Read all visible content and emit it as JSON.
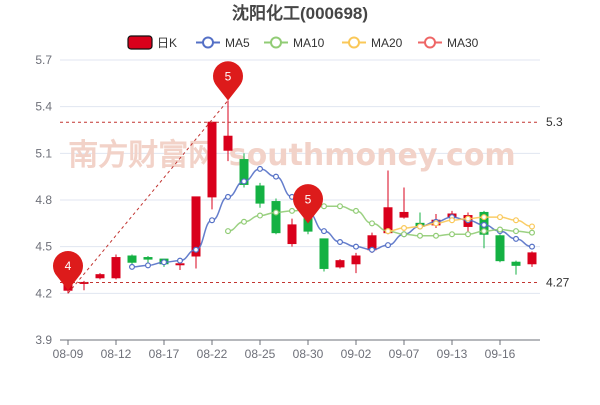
{
  "chart_data": {
    "type": "candlestick",
    "title": "沈阳化工(000698)",
    "legend": {
      "placement": "top-center",
      "items": [
        {
          "name": "日K",
          "color": "#d9001b",
          "kind": "box"
        },
        {
          "name": "MA5",
          "color": "#5470c6",
          "kind": "circle"
        },
        {
          "name": "MA10",
          "color": "#91cc75",
          "kind": "circle"
        },
        {
          "name": "MA20",
          "color": "#fac858",
          "kind": "circle"
        },
        {
          "name": "MA30",
          "color": "#ee6666",
          "kind": "circle"
        }
      ]
    },
    "xlabel": "",
    "ylabel": "",
    "ylim": [
      3.9,
      5.7
    ],
    "y_ticks": [
      3.9,
      4.2,
      4.5,
      4.8,
      5.1,
      5.4,
      5.7
    ],
    "grid": "horizontal",
    "x_tick_labels": [
      "08-09",
      "08-12",
      "08-17",
      "08-22",
      "08-25",
      "08-30",
      "09-02",
      "09-07",
      "09-13",
      "09-16"
    ],
    "x_tick_index": [
      0,
      3,
      6,
      9,
      12,
      15,
      18,
      21,
      24,
      27
    ],
    "candles": [
      {
        "o": 4.22,
        "c": 4.27,
        "h": 4.29,
        "l": 4.2
      },
      {
        "o": 4.27,
        "c": 4.27,
        "h": 4.28,
        "l": 4.22
      },
      {
        "o": 4.3,
        "c": 4.32,
        "h": 4.33,
        "l": 4.29
      },
      {
        "o": 4.3,
        "c": 4.43,
        "h": 4.45,
        "l": 4.29
      },
      {
        "o": 4.44,
        "c": 4.4,
        "h": 4.45,
        "l": 4.37
      },
      {
        "o": 4.43,
        "c": 4.42,
        "h": 4.44,
        "l": 4.38
      },
      {
        "o": 4.42,
        "c": 4.39,
        "h": 4.42,
        "l": 4.37
      },
      {
        "o": 4.39,
        "c": 4.39,
        "h": 4.4,
        "l": 4.35
      },
      {
        "o": 4.44,
        "c": 4.82,
        "h": 4.82,
        "l": 4.36
      },
      {
        "o": 4.82,
        "c": 5.3,
        "h": 5.3,
        "l": 4.74
      },
      {
        "o": 5.12,
        "c": 5.21,
        "h": 5.44,
        "l": 5.05
      },
      {
        "o": 5.06,
        "c": 4.9,
        "h": 5.1,
        "l": 4.88
      },
      {
        "o": 4.89,
        "c": 4.78,
        "h": 4.91,
        "l": 4.75
      },
      {
        "o": 4.79,
        "c": 4.59,
        "h": 4.81,
        "l": 4.58
      },
      {
        "o": 4.52,
        "c": 4.64,
        "h": 4.68,
        "l": 4.5
      },
      {
        "o": 4.68,
        "c": 4.6,
        "h": 4.77,
        "l": 4.58
      },
      {
        "o": 4.55,
        "c": 4.36,
        "h": 4.55,
        "l": 4.34
      },
      {
        "o": 4.37,
        "c": 4.41,
        "h": 4.42,
        "l": 4.36
      },
      {
        "o": 4.39,
        "c": 4.44,
        "h": 4.46,
        "l": 4.33
      },
      {
        "o": 4.48,
        "c": 4.57,
        "h": 4.59,
        "l": 4.46
      },
      {
        "o": 4.59,
        "c": 4.75,
        "h": 4.99,
        "l": 4.58
      },
      {
        "o": 4.69,
        "c": 4.72,
        "h": 4.88,
        "l": 4.68
      },
      {
        "o": 4.65,
        "c": 4.63,
        "h": 4.72,
        "l": 4.61
      },
      {
        "o": 4.64,
        "c": 4.67,
        "h": 4.71,
        "l": 4.62
      },
      {
        "o": 4.69,
        "c": 4.71,
        "h": 4.73,
        "l": 4.66
      },
      {
        "o": 4.63,
        "c": 4.7,
        "h": 4.72,
        "l": 4.58
      },
      {
        "o": 4.72,
        "c": 4.58,
        "h": 4.73,
        "l": 4.49
      },
      {
        "o": 4.57,
        "c": 4.41,
        "h": 4.58,
        "l": 4.4
      },
      {
        "o": 4.4,
        "c": 4.38,
        "h": 4.41,
        "l": 4.32
      },
      {
        "o": 4.39,
        "c": 4.46,
        "h": 4.47,
        "l": 4.37
      }
    ],
    "series": [
      {
        "name": "MA5",
        "color": "#5470c6",
        "values": [
          null,
          null,
          null,
          null,
          4.37,
          4.38,
          4.4,
          4.41,
          4.48,
          4.67,
          4.82,
          4.92,
          5.0,
          4.95,
          4.82,
          4.72,
          4.6,
          4.53,
          4.5,
          4.48,
          4.51,
          4.58,
          4.63,
          4.66,
          4.69,
          4.67,
          4.64,
          4.6,
          4.55,
          4.5
        ]
      },
      {
        "name": "MA10",
        "color": "#91cc75",
        "values": [
          null,
          null,
          null,
          null,
          null,
          null,
          null,
          null,
          null,
          null,
          4.6,
          4.66,
          4.7,
          4.72,
          4.73,
          4.74,
          4.76,
          4.76,
          4.73,
          4.65,
          4.6,
          4.58,
          4.57,
          4.57,
          4.58,
          4.58,
          4.6,
          4.61,
          4.6,
          4.59
        ]
      },
      {
        "name": "MA20",
        "color": "#fac858",
        "values": [
          null,
          null,
          null,
          null,
          null,
          null,
          null,
          null,
          null,
          null,
          null,
          null,
          null,
          null,
          null,
          null,
          null,
          null,
          null,
          null,
          4.6,
          4.62,
          4.63,
          4.65,
          4.67,
          4.68,
          4.69,
          4.69,
          4.67,
          4.63
        ]
      },
      {
        "name": "MA30",
        "color": "#ee6666",
        "values": []
      }
    ],
    "markers": [
      {
        "label": "4",
        "index": 0,
        "value": 4.22
      },
      {
        "label": "5",
        "index": 10,
        "value": 5.44
      },
      {
        "label": "5",
        "index": 15,
        "value": 4.65
      }
    ],
    "reference_lines": [
      {
        "value": 5.3,
        "label": "5.3"
      },
      {
        "value": 4.27,
        "label": "4.27"
      }
    ],
    "trend_line": {
      "from_index": 0,
      "from_value": 4.2,
      "to_index": 10,
      "to_value": 5.44
    },
    "up_color": "#d9001b",
    "down_color": "#14b143",
    "watermark": "南方财富网 southmoney.com"
  }
}
